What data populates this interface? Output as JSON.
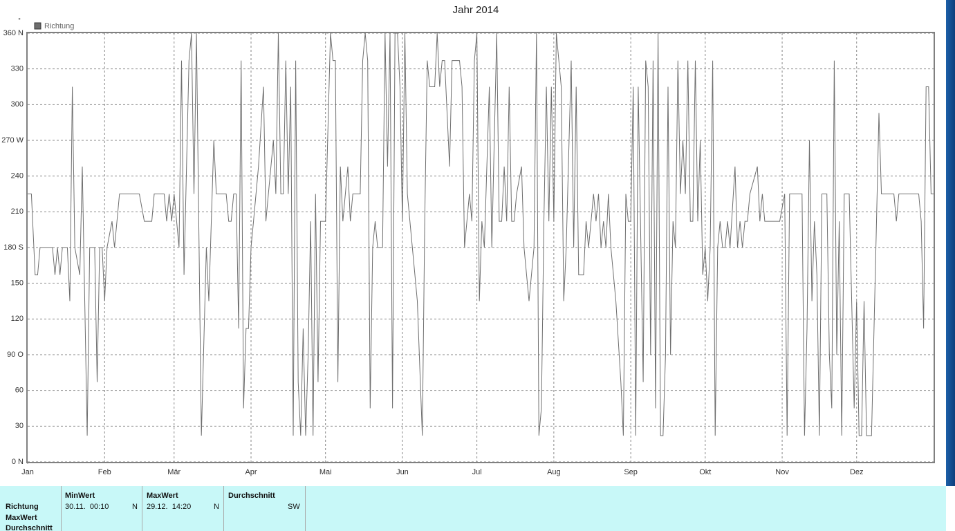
{
  "chart_data": {
    "type": "line",
    "title": "Jahr 2014",
    "y_unit": "°",
    "legend": "top-left",
    "grid": true,
    "xlim": [
      0,
      365
    ],
    "xticks": [
      {
        "value": 0,
        "label": "Jan"
      },
      {
        "value": 31,
        "label": "Feb"
      },
      {
        "value": 59,
        "label": "Mär"
      },
      {
        "value": 90,
        "label": "Apr"
      },
      {
        "value": 120,
        "label": "Mai"
      },
      {
        "value": 151,
        "label": "Jun"
      },
      {
        "value": 181,
        "label": "Jul"
      },
      {
        "value": 212,
        "label": "Aug"
      },
      {
        "value": 243,
        "label": "Sep"
      },
      {
        "value": 273,
        "label": "Okt"
      },
      {
        "value": 304,
        "label": "Nov"
      },
      {
        "value": 334,
        "label": "Dez"
      }
    ],
    "ylim": [
      0,
      360
    ],
    "yticks": [
      {
        "value": 0,
        "label": "0 N"
      },
      30,
      60,
      {
        "value": 90,
        "label": "90 O"
      },
      120,
      150,
      {
        "value": 180,
        "label": "180 S"
      },
      210,
      240,
      {
        "value": 270,
        "label": "270 W"
      },
      300,
      330,
      {
        "value": 360,
        "label": "360 N"
      }
    ],
    "x": [
      0,
      1.5,
      3,
      4,
      5,
      10,
      11,
      12,
      13,
      14,
      16,
      17,
      18,
      19,
      21,
      22,
      24,
      25,
      27,
      28,
      29,
      30,
      31,
      32,
      34,
      35,
      37,
      45,
      47,
      50,
      51,
      55,
      56,
      57,
      58,
      59,
      61,
      62,
      63,
      65,
      66,
      67,
      68,
      70,
      72,
      73,
      75,
      76,
      80,
      81,
      82,
      83,
      84,
      85,
      86,
      87,
      88,
      89,
      90,
      91,
      93,
      95,
      96,
      97,
      99,
      100,
      101,
      102,
      103,
      104,
      105,
      106,
      107,
      108,
      109,
      110,
      111,
      112,
      113,
      114,
      115,
      116,
      117,
      118,
      120,
      122,
      123,
      124,
      125,
      126,
      127,
      129,
      130,
      131,
      134,
      135,
      136,
      137,
      138,
      139,
      140,
      141,
      143,
      144,
      145,
      146,
      147,
      148,
      149,
      150,
      151,
      152,
      153,
      155,
      157,
      159,
      160,
      161,
      162,
      164,
      165,
      166,
      167,
      168,
      170,
      171,
      174,
      175,
      176,
      178,
      179,
      180,
      181,
      182,
      183,
      184,
      186,
      187,
      189,
      190,
      191,
      192,
      193,
      194,
      195,
      196,
      197,
      199,
      200,
      202,
      204,
      205,
      206,
      207,
      208,
      209,
      210,
      211,
      212,
      213,
      215,
      216,
      217,
      219,
      220,
      221,
      222,
      224,
      225,
      226,
      227,
      228,
      229,
      230,
      231,
      232,
      233,
      234,
      235,
      237,
      239,
      240,
      241,
      242,
      243,
      244,
      245,
      246,
      248,
      249,
      250,
      251,
      252,
      253,
      254,
      255,
      256,
      257,
      258,
      259,
      260,
      261,
      262,
      263,
      264,
      265,
      266,
      267,
      268,
      269,
      270,
      271,
      272,
      273,
      274,
      275,
      276,
      277,
      278,
      279,
      280,
      281,
      282,
      283,
      285,
      286,
      287,
      288,
      289,
      290,
      291,
      294,
      295,
      296,
      297,
      303,
      305,
      306,
      307,
      312,
      313,
      314,
      315,
      316,
      317,
      318,
      319,
      320,
      322,
      323,
      324,
      325,
      326,
      327,
      328,
      329,
      331,
      333,
      334,
      335,
      336,
      337,
      338,
      339,
      340,
      341,
      342,
      343,
      344,
      349,
      350,
      351,
      352,
      359,
      360,
      361,
      362,
      363,
      364,
      365
    ],
    "series": [
      {
        "name": "Richtung",
        "color": "#6e6e6e",
        "values": [
          225,
          225,
          157,
          157,
          180,
          180,
          157,
          180,
          157,
          180,
          180,
          135,
          315,
          180,
          157,
          248,
          22,
          180,
          180,
          67,
          180,
          180,
          135,
          180,
          202,
          180,
          225,
          225,
          202,
          202,
          225,
          225,
          202,
          225,
          202,
          225,
          180,
          337,
          157,
          337,
          360,
          225,
          360,
          22,
          180,
          135,
          270,
          225,
          225,
          202,
          202,
          225,
          225,
          112,
          337,
          45,
          112,
          112,
          180,
          202,
          248,
          315,
          202,
          225,
          270,
          225,
          360,
          225,
          225,
          337,
          225,
          315,
          22,
          337,
          67,
          22,
          112,
          22,
          90,
          202,
          22,
          225,
          67,
          202,
          202,
          360,
          337,
          337,
          67,
          248,
          202,
          248,
          202,
          225,
          225,
          337,
          360,
          337,
          45,
          180,
          202,
          180,
          180,
          360,
          248,
          360,
          45,
          360,
          360,
          315,
          202,
          360,
          225,
          180,
          135,
          22,
          202,
          337,
          315,
          315,
          360,
          315,
          337,
          337,
          248,
          337,
          337,
          315,
          180,
          225,
          202,
          337,
          360,
          135,
          202,
          180,
          315,
          180,
          360,
          202,
          202,
          248,
          202,
          315,
          202,
          202,
          225,
          248,
          180,
          135,
          180,
          360,
          22,
          45,
          202,
          315,
          202,
          315,
          202,
          360,
          315,
          135,
          180,
          337,
          180,
          315,
          157,
          157,
          202,
          180,
          202,
          225,
          202,
          225,
          180,
          202,
          180,
          225,
          180,
          135,
          67,
          22,
          225,
          202,
          202,
          315,
          22,
          315,
          67,
          337,
          315,
          90,
          337,
          45,
          360,
          22,
          22,
          90,
          315,
          90,
          202,
          180,
          337,
          225,
          270,
          225,
          337,
          202,
          202,
          337,
          202,
          270,
          157,
          180,
          135,
          180,
          337,
          22,
          180,
          202,
          180,
          180,
          202,
          180,
          248,
          180,
          202,
          180,
          202,
          202,
          225,
          248,
          202,
          225,
          202,
          202,
          225,
          22,
          225,
          225,
          22,
          112,
          270,
          135,
          202,
          157,
          22,
          225,
          225,
          90,
          45,
          337,
          90,
          202,
          22,
          225,
          225,
          45,
          135,
          22,
          22,
          135,
          22,
          22,
          22,
          112,
          202,
          293,
          225,
          225,
          202,
          225,
          225,
          225,
          202,
          112,
          315,
          315,
          225,
          225
        ]
      }
    ]
  },
  "table": {
    "columns": [
      "MinWert",
      "MaxWert",
      "Durchschnitt"
    ],
    "rows": [
      {
        "label": "Richtung",
        "min_time": "30.11.  00:10",
        "min_dir": "N",
        "max_time": "29.12.  14:20",
        "max_dir": "N",
        "avg": "SW"
      },
      {
        "label": "MaxWert"
      },
      {
        "label": "Durchschnitt"
      }
    ]
  }
}
